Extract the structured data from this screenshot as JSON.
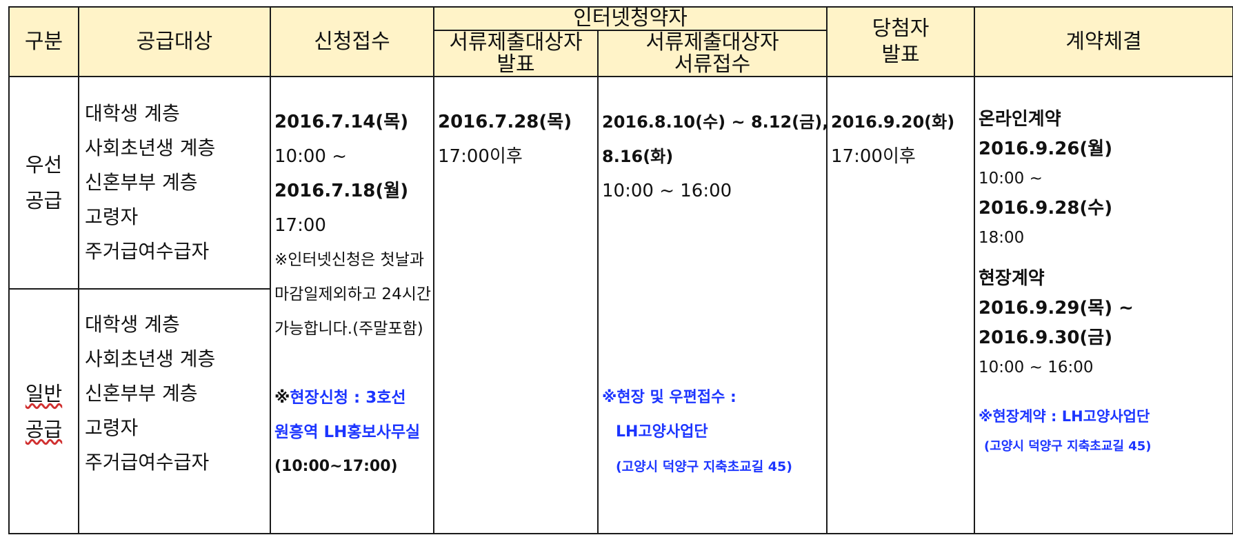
{
  "header": {
    "gubun": "구분",
    "target": "공급대상",
    "application": "신청접수",
    "internet_group": "인터넷청약자",
    "doc_announce": [
      "서류제출대상자",
      "발표"
    ],
    "doc_receipt": [
      "서류제출대상자",
      "서류접수"
    ],
    "winner": [
      "당첨자",
      "발표"
    ],
    "contract": "계약체결"
  },
  "rows": {
    "priority": {
      "label": [
        "우선",
        "공급"
      ],
      "targets": [
        "대학생 계층",
        "사회초년생 계층",
        "신혼부부 계층",
        "고령자",
        "주거급여수급자"
      ]
    },
    "general": {
      "label": [
        "일반",
        "공급"
      ],
      "targets": [
        "대학생 계층",
        "사회초년생 계층",
        "신혼부부 계층",
        "고령자",
        "주거급여수급자"
      ]
    }
  },
  "application": {
    "start_date": "2016.7.14(목)",
    "start_time": "10:00 ~",
    "end_date": "2016.7.18(월)",
    "end_time": "17:00",
    "note": [
      "※인터넷신청은 첫날과",
      "마감일제외하고 24시간",
      "가능합니다.(주말포함)"
    ],
    "onsite_prefix": "※",
    "onsite": [
      "현장신청 : 3호선",
      "원흥역 LH홍보사무실"
    ],
    "onsite_hours": "(10:00~17:00)"
  },
  "doc_announce": {
    "date": "2016.7.28(목)",
    "time": "17:00이후"
  },
  "doc_receipt": {
    "dates": [
      "2016.8.10(수) ~ 8.12(금),",
      "8.16(화)"
    ],
    "time": "10:00 ~ 16:00",
    "onsite": [
      "※현장 및 우편접수 :",
      "LH고양사업단",
      "(고양시 덕양구 지축초교길 45)"
    ]
  },
  "winner": {
    "date": "2016.9.20(화)",
    "time": "17:00이후"
  },
  "contract": {
    "online_title": "온라인계약",
    "online_start": "2016.9.26(월)",
    "online_time1": "10:00 ~",
    "online_end": "2016.9.28(수)",
    "online_time2": "18:00",
    "onsite_title": "현장계약",
    "onsite_start": "2016.9.29(목) ~",
    "onsite_end": "2016.9.30(금)",
    "onsite_time": "10:00 ~ 16:00",
    "onsite_place": [
      "※현장계약 : LH고양사업단",
      "(고양시 덕양구 지축초교길 45)"
    ]
  },
  "colors": {
    "header_bg": "#fff3c8",
    "border": "#1a1a1a",
    "accent_blue": "#1c35ff"
  }
}
